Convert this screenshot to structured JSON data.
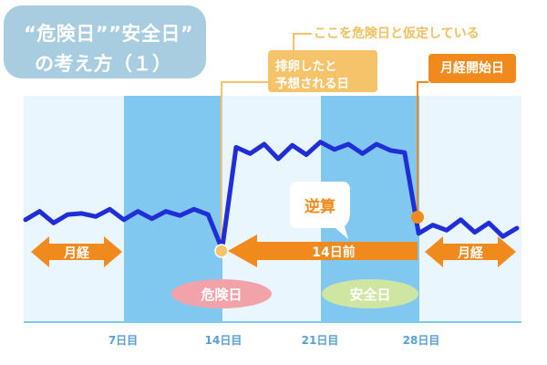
{
  "title": {
    "line1": "“危険日””安全日”",
    "line2": "の考え方（１）"
  },
  "annotations": {
    "assumption_note": "ここを危険日と仮定している",
    "ovulation_label_line1": "排卵したと",
    "ovulation_label_line2": "予想される日",
    "period_start_label": "月経開始日",
    "back_calc_label": "逆算",
    "fourteen_days_before": "14日前",
    "period_label_left": "月経",
    "period_label_right": "月経",
    "danger_day": "危険日",
    "safe_day": "安全日"
  },
  "x_axis": {
    "ticks": [
      "7日目",
      "14日目",
      "21日目",
      "28日目"
    ]
  },
  "colors": {
    "stripe_light": "#eaf6fd",
    "stripe_dark": "#80c8ef",
    "line": "#1f2ed6",
    "orange": "#f08a1c",
    "orange_light": "#f5c36a",
    "title_box": "#a8cde0",
    "danger_ellipse": "#f2a3aa",
    "safe_ellipse": "#cfe6a2",
    "tick_text": "#5a9fcf"
  },
  "chart_data": {
    "type": "line",
    "title": "",
    "xlabel": "",
    "ylabel": "",
    "x_ticks": [
      "7日目",
      "14日目",
      "21日目",
      "28日目"
    ],
    "grid": false,
    "series": [
      {
        "values": [
          [
            0,
            0.28
          ],
          [
            1,
            0.36
          ],
          [
            2,
            0.25
          ],
          [
            3,
            0.33
          ],
          [
            4,
            0.34
          ],
          [
            5,
            0.31
          ],
          [
            6,
            0.38
          ],
          [
            7,
            0.28
          ],
          [
            8,
            0.36
          ],
          [
            9,
            0.29
          ],
          [
            10,
            0.36
          ],
          [
            11,
            0.32
          ],
          [
            12,
            0.38
          ],
          [
            13,
            0.33
          ],
          [
            14,
            0.0
          ],
          [
            15,
            0.97
          ],
          [
            16,
            0.91
          ],
          [
            17,
            1.0
          ],
          [
            18,
            0.86
          ],
          [
            19,
            0.99
          ],
          [
            20,
            0.9
          ],
          [
            21,
            1.02
          ],
          [
            22,
            0.95
          ],
          [
            23,
            1.0
          ],
          [
            24,
            0.91
          ],
          [
            25,
            1.0
          ],
          [
            26,
            0.94
          ],
          [
            27,
            0.92
          ],
          [
            28,
            0.15
          ],
          [
            29,
            0.23
          ],
          [
            30,
            0.18
          ],
          [
            31,
            0.28
          ],
          [
            32,
            0.16
          ],
          [
            33,
            0.25
          ],
          [
            34,
            0.12
          ],
          [
            35,
            0.2
          ]
        ]
      }
    ]
  }
}
